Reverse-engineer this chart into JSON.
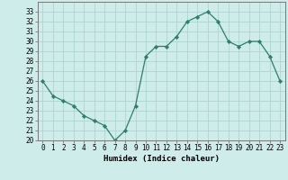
{
  "x": [
    0,
    1,
    2,
    3,
    4,
    5,
    6,
    7,
    8,
    9,
    10,
    11,
    12,
    13,
    14,
    15,
    16,
    17,
    18,
    19,
    20,
    21,
    22,
    23
  ],
  "y": [
    26,
    24.5,
    24,
    23.5,
    22.5,
    22,
    21.5,
    20,
    21,
    23.5,
    28.5,
    29.5,
    29.5,
    30.5,
    32,
    32.5,
    33,
    32,
    30,
    29.5,
    30,
    30,
    28.5,
    26
  ],
  "line_color": "#2e7d6e",
  "marker": "D",
  "marker_size": 2.2,
  "bg_color": "#cdecea",
  "grid_color": "#aed4cf",
  "xlabel": "Humidex (Indice chaleur)",
  "ylim": [
    20,
    34
  ],
  "xlim": [
    -0.5,
    23.5
  ],
  "yticks": [
    20,
    21,
    22,
    23,
    24,
    25,
    26,
    27,
    28,
    29,
    30,
    31,
    32,
    33
  ],
  "xticks": [
    0,
    1,
    2,
    3,
    4,
    5,
    6,
    7,
    8,
    9,
    10,
    11,
    12,
    13,
    14,
    15,
    16,
    17,
    18,
    19,
    20,
    21,
    22,
    23
  ],
  "label_fontsize": 6.5,
  "tick_fontsize": 5.5
}
